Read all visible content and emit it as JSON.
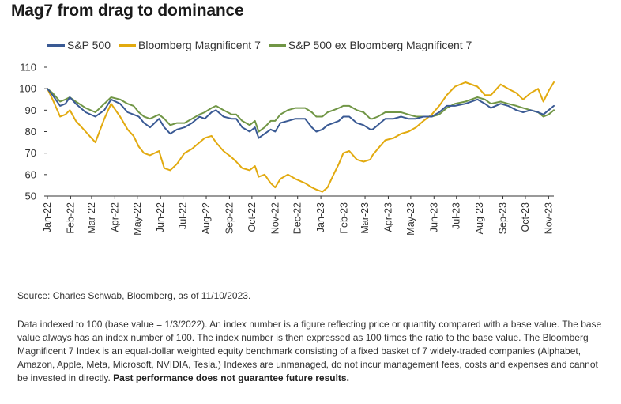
{
  "title": "Mag7 from drag to dominance",
  "chart_data": {
    "type": "line",
    "title": "Mag7 from drag to dominance",
    "ylim": [
      50,
      110
    ],
    "yticks": [
      50,
      60,
      70,
      80,
      90,
      100,
      110
    ],
    "xlim": [
      "2022-01-03",
      "2023-11-10"
    ],
    "xticks": [
      "Jan-22",
      "Feb-22",
      "Mar-22",
      "Apr-22",
      "May-22",
      "Jun-22",
      "Jul-22",
      "Aug-22",
      "Sep-22",
      "Oct-22",
      "Nov-22",
      "Dec-22",
      "Jan-23",
      "Feb-23",
      "Mar-23",
      "Apr-23",
      "May-23",
      "Jun-23",
      "Jul-23",
      "Aug-23",
      "Sep-23",
      "Oct-23",
      "Nov-23"
    ],
    "grid": false,
    "legend_position": "top",
    "series": [
      {
        "name": "S&P 500",
        "color": "#3a5a94",
        "x": [
          "2022-01-03",
          "2022-01-10",
          "2022-01-20",
          "2022-01-27",
          "2022-02-02",
          "2022-02-10",
          "2022-02-23",
          "2022-03-08",
          "2022-03-20",
          "2022-03-29",
          "2022-04-10",
          "2022-04-20",
          "2022-04-28",
          "2022-05-05",
          "2022-05-12",
          "2022-05-20",
          "2022-06-01",
          "2022-06-08",
          "2022-06-16",
          "2022-06-25",
          "2022-07-05",
          "2022-07-15",
          "2022-07-25",
          "2022-08-01",
          "2022-08-10",
          "2022-08-16",
          "2022-08-26",
          "2022-09-06",
          "2022-09-12",
          "2022-09-20",
          "2022-09-30",
          "2022-10-07",
          "2022-10-12",
          "2022-10-20",
          "2022-10-28",
          "2022-11-03",
          "2022-11-10",
          "2022-11-20",
          "2022-11-30",
          "2022-12-13",
          "2022-12-22",
          "2022-12-28",
          "2023-01-05",
          "2023-01-12",
          "2023-01-20",
          "2023-01-27",
          "2023-02-02",
          "2023-02-10",
          "2023-02-20",
          "2023-03-01",
          "2023-03-10",
          "2023-03-13",
          "2023-03-20",
          "2023-03-30",
          "2023-04-10",
          "2023-04-20",
          "2023-04-30",
          "2023-05-10",
          "2023-05-20",
          "2023-05-31",
          "2023-06-10",
          "2023-06-20",
          "2023-07-01",
          "2023-07-15",
          "2023-07-31",
          "2023-08-10",
          "2023-08-18",
          "2023-08-31",
          "2023-09-10",
          "2023-09-21",
          "2023-09-30",
          "2023-10-10",
          "2023-10-20",
          "2023-10-27",
          "2023-11-03",
          "2023-11-10"
        ],
        "y": [
          100,
          97,
          92,
          93,
          96,
          93,
          89,
          87,
          90,
          95,
          93,
          89,
          88,
          87,
          84,
          82,
          86,
          82,
          79,
          81,
          82,
          84,
          87,
          86,
          89,
          90,
          87,
          86,
          86,
          82,
          80,
          82,
          77,
          79,
          81,
          80,
          84,
          85,
          86,
          86,
          82,
          80,
          81,
          83,
          84,
          85,
          87,
          87,
          84,
          83,
          81,
          81,
          83,
          86,
          86,
          87,
          86,
          86,
          87,
          87,
          89,
          92,
          92,
          93,
          95,
          93,
          91,
          93,
          92,
          90,
          89,
          90,
          89,
          88,
          90,
          92
        ]
      },
      {
        "name": "Bloomberg Magnificent 7",
        "color": "#e2aa0f",
        "x": [
          "2022-01-03",
          "2022-01-10",
          "2022-01-20",
          "2022-01-27",
          "2022-02-02",
          "2022-02-10",
          "2022-02-23",
          "2022-03-08",
          "2022-03-20",
          "2022-03-29",
          "2022-04-10",
          "2022-04-20",
          "2022-04-28",
          "2022-05-05",
          "2022-05-12",
          "2022-05-20",
          "2022-06-01",
          "2022-06-08",
          "2022-06-16",
          "2022-06-25",
          "2022-07-05",
          "2022-07-15",
          "2022-07-25",
          "2022-08-01",
          "2022-08-10",
          "2022-08-16",
          "2022-08-26",
          "2022-09-06",
          "2022-09-12",
          "2022-09-20",
          "2022-09-30",
          "2022-10-07",
          "2022-10-12",
          "2022-10-20",
          "2022-10-28",
          "2022-11-03",
          "2022-11-10",
          "2022-11-20",
          "2022-11-30",
          "2022-12-13",
          "2022-12-22",
          "2022-12-28",
          "2023-01-05",
          "2023-01-12",
          "2023-01-20",
          "2023-01-27",
          "2023-02-02",
          "2023-02-10",
          "2023-02-20",
          "2023-03-01",
          "2023-03-10",
          "2023-03-13",
          "2023-03-20",
          "2023-03-30",
          "2023-04-10",
          "2023-04-20",
          "2023-04-30",
          "2023-05-10",
          "2023-05-20",
          "2023-05-31",
          "2023-06-10",
          "2023-06-20",
          "2023-07-01",
          "2023-07-15",
          "2023-07-31",
          "2023-08-10",
          "2023-08-18",
          "2023-08-31",
          "2023-09-10",
          "2023-09-21",
          "2023-09-30",
          "2023-10-10",
          "2023-10-20",
          "2023-10-27",
          "2023-11-03",
          "2023-11-10"
        ],
        "y": [
          100,
          95,
          87,
          88,
          90,
          85,
          80,
          75,
          86,
          93,
          87,
          81,
          78,
          73,
          70,
          69,
          71,
          63,
          62,
          65,
          70,
          72,
          75,
          77,
          78,
          75,
          71,
          68,
          66,
          63,
          62,
          64,
          59,
          60,
          56,
          54,
          58,
          60,
          58,
          56,
          54,
          53,
          52,
          54,
          60,
          65,
          70,
          71,
          67,
          66,
          67,
          69,
          72,
          76,
          77,
          79,
          80,
          82,
          85,
          88,
          92,
          97,
          101,
          103,
          101,
          97,
          97,
          102,
          100,
          98,
          95,
          98,
          100,
          94,
          99,
          103
        ]
      },
      {
        "name": "S&P 500 ex Bloomberg Magnificent 7",
        "color": "#719646",
        "x": [
          "2022-01-03",
          "2022-01-10",
          "2022-01-20",
          "2022-01-27",
          "2022-02-02",
          "2022-02-10",
          "2022-02-23",
          "2022-03-08",
          "2022-03-20",
          "2022-03-29",
          "2022-04-10",
          "2022-04-20",
          "2022-04-28",
          "2022-05-05",
          "2022-05-12",
          "2022-05-20",
          "2022-06-01",
          "2022-06-08",
          "2022-06-16",
          "2022-06-25",
          "2022-07-05",
          "2022-07-15",
          "2022-07-25",
          "2022-08-01",
          "2022-08-10",
          "2022-08-16",
          "2022-08-26",
          "2022-09-06",
          "2022-09-12",
          "2022-09-20",
          "2022-09-30",
          "2022-10-07",
          "2022-10-12",
          "2022-10-20",
          "2022-10-28",
          "2022-11-03",
          "2022-11-10",
          "2022-11-20",
          "2022-11-30",
          "2022-12-13",
          "2022-12-22",
          "2022-12-28",
          "2023-01-05",
          "2023-01-12",
          "2023-01-20",
          "2023-01-27",
          "2023-02-02",
          "2023-02-10",
          "2023-02-20",
          "2023-03-01",
          "2023-03-10",
          "2023-03-13",
          "2023-03-20",
          "2023-03-30",
          "2023-04-10",
          "2023-04-20",
          "2023-04-30",
          "2023-05-10",
          "2023-05-20",
          "2023-05-31",
          "2023-06-10",
          "2023-06-20",
          "2023-07-01",
          "2023-07-15",
          "2023-07-31",
          "2023-08-10",
          "2023-08-18",
          "2023-08-31",
          "2023-09-10",
          "2023-09-21",
          "2023-09-30",
          "2023-10-10",
          "2023-10-20",
          "2023-10-27",
          "2023-11-03",
          "2023-11-10"
        ],
        "y": [
          100,
          98,
          94,
          95,
          96,
          94,
          91,
          89,
          93,
          96,
          95,
          93,
          92,
          89,
          87,
          86,
          88,
          86,
          83,
          84,
          84,
          86,
          88,
          89,
          91,
          92,
          90,
          88,
          88,
          85,
          83,
          85,
          80,
          82,
          85,
          85,
          88,
          90,
          91,
          91,
          89,
          87,
          87,
          89,
          90,
          91,
          92,
          92,
          90,
          89,
          86,
          86,
          87,
          89,
          89,
          89,
          88,
          87,
          87,
          87,
          88,
          91,
          93,
          94,
          96,
          95,
          93,
          94,
          93,
          92,
          91,
          90,
          89,
          87,
          88,
          90
        ]
      }
    ]
  },
  "source": "Source: Charles Schwab, Bloomberg, as of 11/10/2023.",
  "note_text": "Data indexed to 100 (base value = 1/3/2022). An index number is a figure reflecting price or quantity compared with a base value. The base value always has an index number of 100. The index number is then expressed as 100 times the ratio to the base value. The Bloomberg Magnificent 7 Index is an equal-dollar weighted equity benchmark consisting of a fixed basket of 7 widely-traded companies (Alphabet, Amazon, Apple, Meta, Microsoft, NVIDIA, Tesla.)  Indexes are unmanaged, do not incur management fees, costs and expenses and cannot be invested in directly. ",
  "note_bold": "Past performance does not guarantee future results."
}
